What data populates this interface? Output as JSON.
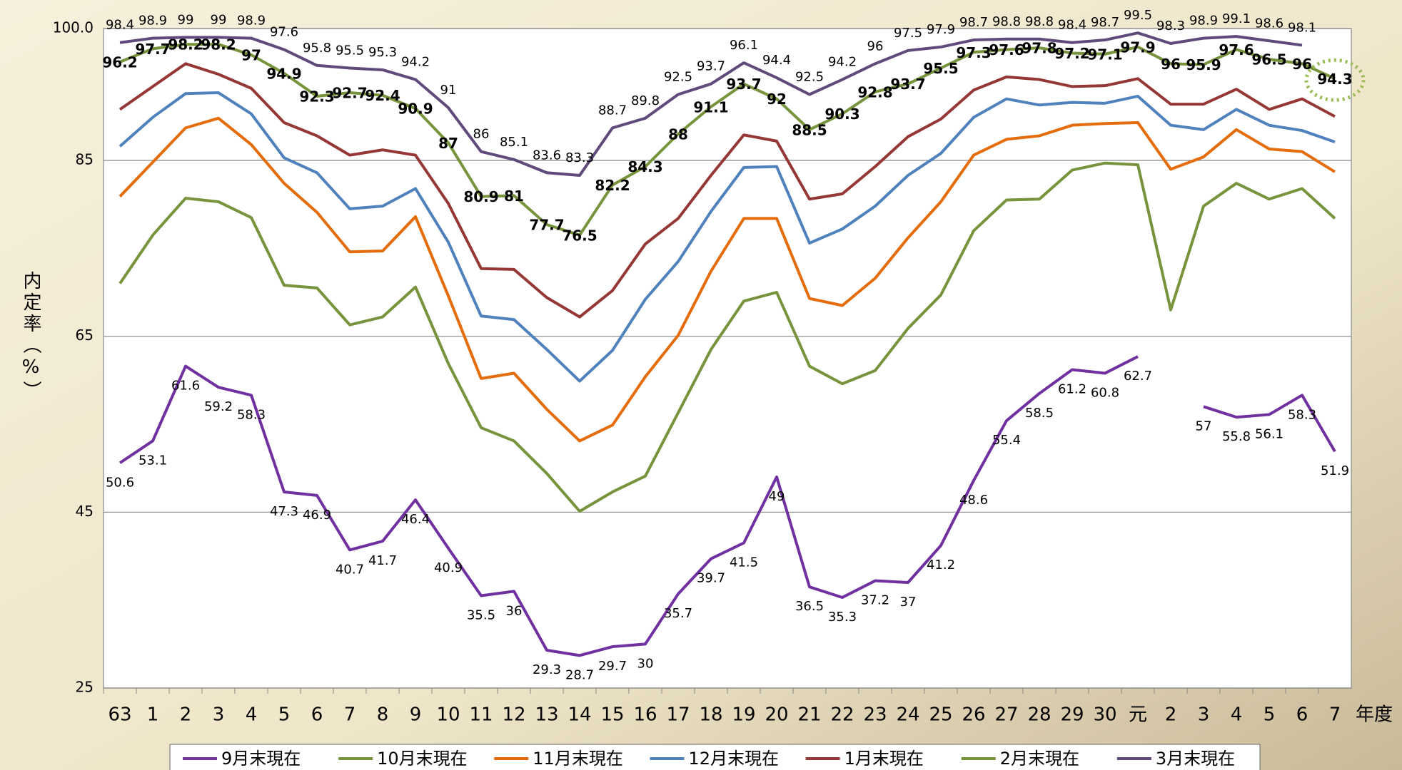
{
  "chart_data": {
    "type": "line",
    "ylabel": "内定率（%）",
    "xlabel": "年度",
    "categories": [
      "63",
      "1",
      "2",
      "3",
      "4",
      "5",
      "6",
      "7",
      "8",
      "9",
      "10",
      "11",
      "12",
      "13",
      "14",
      "15",
      "16",
      "17",
      "18",
      "19",
      "20",
      "21",
      "22",
      "23",
      "24",
      "25",
      "26",
      "27",
      "28",
      "29",
      "30",
      "元",
      "2",
      "3",
      "4",
      "5",
      "6",
      "7"
    ],
    "ylim": [
      25,
      100
    ],
    "yticks": [
      25,
      45,
      65,
      85,
      {
        "value": 100,
        "label": "100.0"
      }
    ],
    "grid": true,
    "legend": "bottom",
    "series": [
      {
        "name": "9月末現在",
        "color": "#7030a0",
        "labels": "below",
        "values": [
          50.6,
          53.1,
          61.6,
          59.2,
          58.3,
          47.3,
          46.9,
          40.7,
          41.7,
          46.4,
          40.9,
          35.5,
          36,
          29.3,
          28.7,
          29.7,
          30,
          35.7,
          39.7,
          41.5,
          49,
          36.5,
          35.3,
          37.2,
          37,
          41.2,
          48.6,
          55.4,
          58.5,
          61.2,
          60.8,
          62.7,
          null,
          57,
          55.8,
          56.1,
          58.3,
          51.9
        ]
      },
      {
        "name": "10月末現在",
        "color": "#77933c",
        "values": [
          71,
          76.5,
          80.7,
          80.3,
          78.5,
          70.8,
          70.5,
          66.3,
          67.2,
          70.6,
          61.9,
          54.6,
          53.1,
          49.4,
          45.1,
          47.3,
          49.1,
          56.3,
          63.5,
          69,
          70,
          61.6,
          59.6,
          61.1,
          65.9,
          69.7,
          77,
          80.5,
          80.6,
          83.9,
          84.7,
          84.5,
          68,
          79.8,
          82.4,
          80.6,
          81.8,
          78.4
        ]
      },
      {
        "name": "11月末現在",
        "color": "#e46c0a",
        "values": [
          80.9,
          84.8,
          88.7,
          89.8,
          86.8,
          82.4,
          79.1,
          74.6,
          74.7,
          78.6,
          69.6,
          60.2,
          60.8,
          56.7,
          53.1,
          54.9,
          60.4,
          65.1,
          72.4,
          78.4,
          78.4,
          69.3,
          68.5,
          71.6,
          76.2,
          80.3,
          85.6,
          87.4,
          87.8,
          89,
          89.2,
          89.3,
          84,
          85.4,
          88.5,
          86.3,
          86,
          83.7
        ]
      },
      {
        "name": "12月末現在",
        "color": "#4f81bd",
        "values": [
          86.6,
          89.9,
          92.6,
          92.7,
          90.3,
          85.3,
          83.6,
          79.5,
          79.8,
          81.8,
          75.7,
          67.3,
          66.9,
          63.5,
          59.9,
          63.4,
          69.2,
          73.5,
          79.2,
          84.2,
          84.3,
          75.6,
          77.2,
          79.8,
          83.3,
          85.8,
          89.9,
          92,
          91.3,
          91.6,
          91.5,
          92.3,
          89,
          88.5,
          90.8,
          89,
          88.4,
          87.1
        ]
      },
      {
        "name": "1月末現在",
        "color": "#953735",
        "values": [
          90.8,
          93.4,
          96,
          94.8,
          93.2,
          89.3,
          87.8,
          85.6,
          86.2,
          85.6,
          80.1,
          72.7,
          72.6,
          69.4,
          67.2,
          70.2,
          75.5,
          78.4,
          83.3,
          87.9,
          87.2,
          80.6,
          81.2,
          84.3,
          87.7,
          89.7,
          93,
          94.5,
          94.2,
          93.4,
          93.5,
          94.3,
          91.4,
          91.4,
          93.1,
          90.8,
          92,
          90
        ]
      },
      {
        "name": "2月末現在",
        "color": "#77933c",
        "labels": "center",
        "values": [
          96.2,
          97.7,
          98.2,
          98.2,
          97,
          94.9,
          92.3,
          92.7,
          92.4,
          90.9,
          87,
          80.9,
          81,
          77.7,
          76.5,
          82.2,
          84.3,
          88,
          91.1,
          93.7,
          92,
          88.5,
          90.3,
          92.8,
          93.7,
          95.5,
          97.3,
          97.6,
          97.8,
          97.2,
          97.1,
          97.9,
          96,
          95.9,
          97.6,
          96.5,
          96,
          94.3
        ]
      },
      {
        "name": "3月末現在",
        "color": "#604a7b",
        "labels": "above",
        "values": [
          98.4,
          98.9,
          99,
          99,
          98.9,
          97.6,
          95.8,
          95.5,
          95.3,
          94.2,
          91,
          86,
          85.1,
          83.6,
          83.3,
          88.7,
          89.8,
          92.5,
          93.7,
          96.1,
          94.4,
          92.5,
          94.2,
          96,
          97.5,
          97.9,
          98.7,
          98.8,
          98.8,
          98.4,
          98.7,
          99.5,
          98.3,
          98.9,
          99.1,
          98.6,
          98.1,
          null
        ]
      }
    ]
  }
}
